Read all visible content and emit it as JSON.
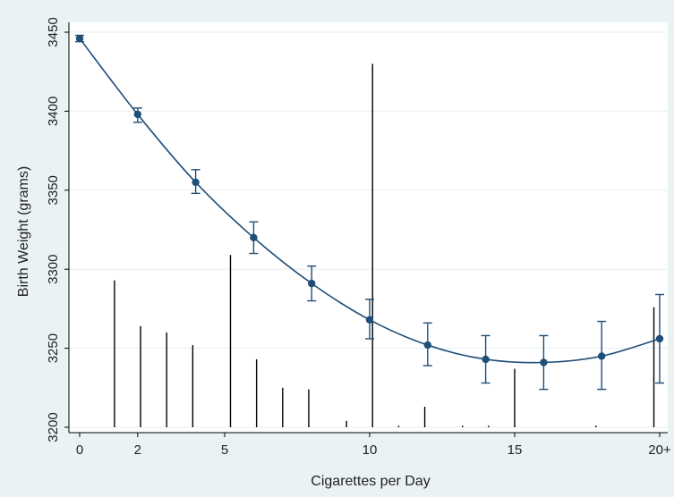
{
  "chart_data": {
    "type": "line",
    "title": "",
    "xlabel": "Cigarettes per Day",
    "ylabel": "Birth Weight (grams)",
    "xlim": [
      0,
      20
    ],
    "ylim": [
      3200,
      3450
    ],
    "grid": true,
    "x_ticks": [
      {
        "value": 0,
        "label": "0"
      },
      {
        "value": 2,
        "label": "2"
      },
      {
        "value": 5,
        "label": "5"
      },
      {
        "value": 10,
        "label": "10"
      },
      {
        "value": 15,
        "label": "15"
      },
      {
        "value": 20,
        "label": "20+"
      }
    ],
    "y_ticks": [
      {
        "value": 3200,
        "label": "3200"
      },
      {
        "value": 3250,
        "label": "3250"
      },
      {
        "value": 3300,
        "label": "3300"
      },
      {
        "value": 3350,
        "label": "3350"
      },
      {
        "value": 3400,
        "label": "3400"
      },
      {
        "value": 3450,
        "label": "3450"
      }
    ],
    "series": [
      {
        "color": "#1f4e79",
        "points": [
          {
            "x": 0,
            "y": 3446,
            "lo": 3444,
            "hi": 3448
          },
          {
            "x": 2,
            "y": 3398,
            "lo": 3393,
            "hi": 3402
          },
          {
            "x": 4,
            "y": 3355,
            "lo": 3348,
            "hi": 3363
          },
          {
            "x": 6,
            "y": 3320,
            "lo": 3310,
            "hi": 3330
          },
          {
            "x": 8,
            "y": 3291,
            "lo": 3280,
            "hi": 3302
          },
          {
            "x": 10,
            "y": 3268,
            "lo": 3256,
            "hi": 3281
          },
          {
            "x": 12,
            "y": 3252,
            "lo": 3239,
            "hi": 3266
          },
          {
            "x": 14,
            "y": 3243,
            "lo": 3228,
            "hi": 3258
          },
          {
            "x": 16,
            "y": 3241,
            "lo": 3224,
            "hi": 3258
          },
          {
            "x": 18,
            "y": 3245,
            "lo": 3224,
            "hi": 3267
          },
          {
            "x": 20,
            "y": 3256,
            "lo": 3228,
            "hi": 3284
          }
        ]
      }
    ],
    "histogram": {
      "color": "#000000",
      "baseline": 3200,
      "bars": [
        {
          "x": 1.2,
          "y": 3293
        },
        {
          "x": 2.1,
          "y": 3264
        },
        {
          "x": 3.0,
          "y": 3260
        },
        {
          "x": 3.9,
          "y": 3252
        },
        {
          "x": 5.2,
          "y": 3309
        },
        {
          "x": 6.1,
          "y": 3243
        },
        {
          "x": 7.0,
          "y": 3225
        },
        {
          "x": 7.9,
          "y": 3224
        },
        {
          "x": 9.2,
          "y": 3204
        },
        {
          "x": 10.1,
          "y": 3430
        },
        {
          "x": 11.0,
          "y": 3201
        },
        {
          "x": 11.9,
          "y": 3213
        },
        {
          "x": 13.2,
          "y": 3201
        },
        {
          "x": 14.1,
          "y": 3201
        },
        {
          "x": 15.0,
          "y": 3237
        },
        {
          "x": 17.8,
          "y": 3201
        },
        {
          "x": 19.8,
          "y": 3276
        }
      ]
    }
  }
}
